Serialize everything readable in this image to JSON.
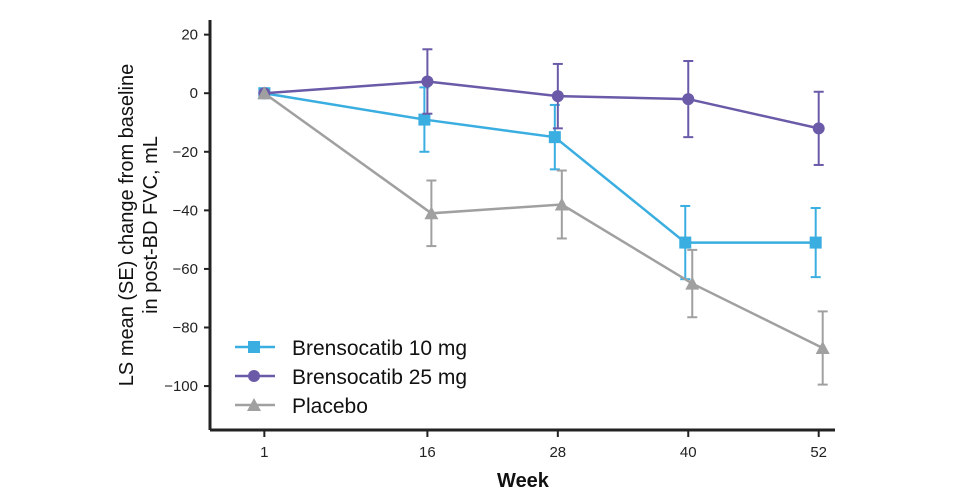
{
  "chart_data": {
    "type": "line",
    "title": "",
    "xlabel": "Week",
    "ylabel_lines": [
      "LS mean (SE) change from baseline",
      "in post-BD FVC, mL"
    ],
    "x_ticks": [
      1,
      16,
      28,
      40,
      52
    ],
    "y_ticks": [
      20,
      0,
      -20,
      -40,
      -60,
      -80,
      -100
    ],
    "xlim": [
      -4,
      53.5
    ],
    "ylim": [
      -115,
      25
    ],
    "grid": false,
    "legend_position": "bottom-left",
    "error_bars": "SE",
    "series": [
      {
        "name": "Brensocatib 10 mg",
        "color": "#3aaee0",
        "marker": "square",
        "x": [
          1,
          16,
          28,
          40,
          52
        ],
        "y": [
          0,
          -9,
          -15,
          -51,
          -51
        ],
        "se": [
          0,
          11,
          11,
          12.5,
          11.8
        ]
      },
      {
        "name": "Brensocatib 25 mg",
        "color": "#6b5aa8",
        "marker": "circle",
        "x": [
          1,
          16,
          28,
          40,
          52
        ],
        "y": [
          0,
          4,
          -1,
          -2,
          -12
        ],
        "se": [
          0,
          11,
          11,
          13,
          12.5
        ]
      },
      {
        "name": "Placebo",
        "color": "#a0a0a0",
        "marker": "triangle",
        "x": [
          1,
          16,
          28,
          40,
          52
        ],
        "y": [
          0,
          -41,
          -38,
          -65,
          -87
        ],
        "se": [
          0,
          11.2,
          11.6,
          11.5,
          12.5
        ]
      }
    ]
  }
}
